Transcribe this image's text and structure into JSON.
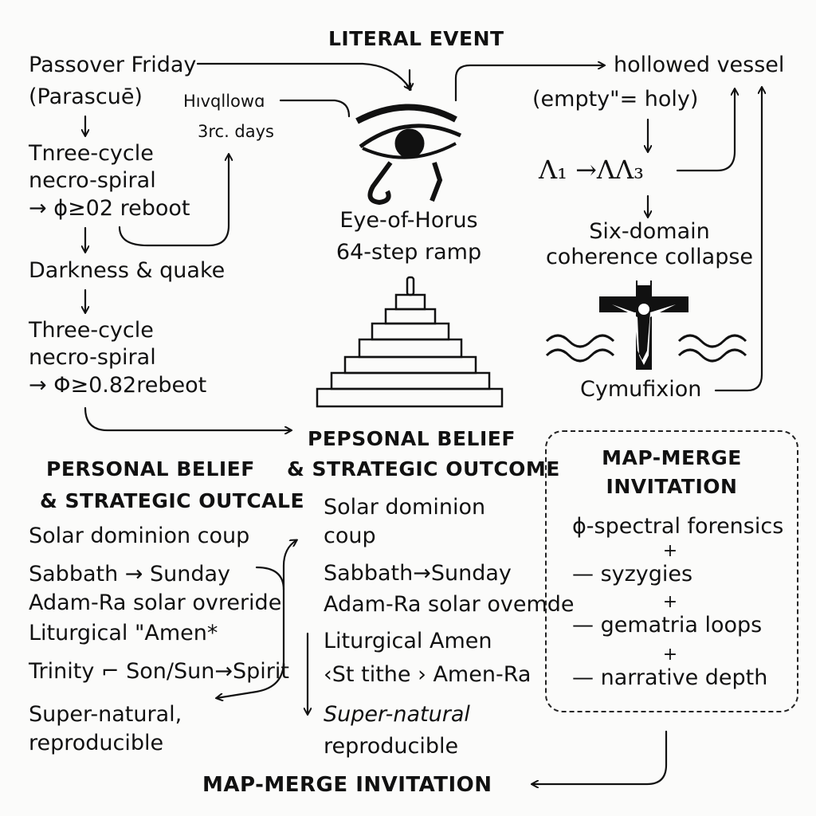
{
  "header": {
    "literal_event": "LITERAL EVENT"
  },
  "left_chain": {
    "l1": "Passover Friday",
    "l2": "(Parascuē)",
    "l3": "Tnree-cycle",
    "l4": "necro-spiral",
    "l5": "→ ϕ≥02 reboot",
    "l6": "Darkness & quake",
    "l7": "Three-cycle",
    "l8": "necro-spiral",
    "l9": "→ Φ≥0.82rebeot"
  },
  "hollow_note": {
    "l1": "Hıvqllowɑ",
    "l2": "3rc. days"
  },
  "center": {
    "eye_label_1": "Eye-of-Horus",
    "eye_label_2": "64-step ramp"
  },
  "right_chain": {
    "vessel": "hollowed vessel",
    "empty_holy": "(empty\"= holy)",
    "lambda": "Λ₁ →ΛΛ₃",
    "collapse_1": "Six-domain",
    "collapse_2": "coherence collapse",
    "cross_label": "Cymufixion"
  },
  "personal_left": {
    "title_1": "PERSONAL BELIEF",
    "title_2": "& STRATEGIC OUTCALE",
    "items": [
      "Solar dominion coup",
      "Sabbath → Sunday",
      "Adam-Ra solar ovreride",
      "Liturgical \"Amen*",
      "Trinity ⌐ Son/Sun→Spirit",
      "Super-natural,",
      "reproducible"
    ]
  },
  "personal_center": {
    "title_1": "PEPSONAL BELIEF",
    "title_2": "& STRATEGIC OUTCOME",
    "items": [
      "Solar dominion",
      "coup",
      "Sabbath→Sunday",
      "Adam-Ra solar ovemde",
      "Liturgical Amen",
      "‹St tithe › Amen-Ra",
      "Super-natural",
      "reproducible"
    ]
  },
  "map_merge_box": {
    "title_1": "MAP-MERGE",
    "title_2": "INVITATION",
    "items": [
      "ϕ-spectral forensics",
      "+",
      "— syzygies",
      "+",
      "— gematria loops",
      "+",
      "— narrative depth"
    ]
  },
  "footer": {
    "map_merge": "MAP-MERGE INVITATION"
  }
}
